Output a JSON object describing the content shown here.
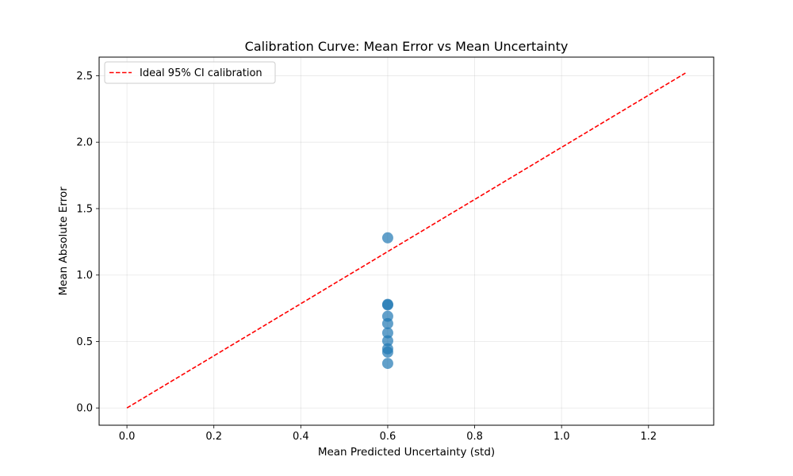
{
  "chart_data": {
    "type": "scatter",
    "title": "Calibration Curve: Mean Error vs Mean Uncertainty",
    "xlabel": "Mean Predicted Uncertainty (std)",
    "ylabel": "Mean Absolute Error",
    "xlim": [
      -0.064,
      1.35
    ],
    "ylim": [
      -0.13,
      2.64
    ],
    "xticks": [
      0.0,
      0.2,
      0.4,
      0.6,
      0.8,
      1.0,
      1.2
    ],
    "xtick_labels": [
      "0.0",
      "0.2",
      "0.4",
      "0.6",
      "0.8",
      "1.0",
      "1.2"
    ],
    "yticks": [
      0.0,
      0.5,
      1.0,
      1.5,
      2.0,
      2.5
    ],
    "ytick_labels": [
      "0.0",
      "0.5",
      "1.0",
      "1.5",
      "2.0",
      "2.5"
    ],
    "grid": true,
    "legend_position": "top-left",
    "series": [
      {
        "kind": "scatter",
        "color": "#1f77b4",
        "points": [
          {
            "x": 0.6,
            "y": 1.28
          },
          {
            "x": 0.6,
            "y": 0.78
          },
          {
            "x": 0.6,
            "y": 0.775
          },
          {
            "x": 0.6,
            "y": 0.69
          },
          {
            "x": 0.6,
            "y": 0.635
          },
          {
            "x": 0.6,
            "y": 0.565
          },
          {
            "x": 0.6,
            "y": 0.505
          },
          {
            "x": 0.6,
            "y": 0.445
          },
          {
            "x": 0.6,
            "y": 0.42
          },
          {
            "x": 0.6,
            "y": 0.335
          }
        ]
      },
      {
        "kind": "line",
        "name": "Ideal 95% CI calibration",
        "color": "#ff0000",
        "style": "dashed",
        "points": [
          {
            "x": 0.0,
            "y": 0.0
          },
          {
            "x": 1.285,
            "y": 2.52
          }
        ]
      }
    ]
  }
}
